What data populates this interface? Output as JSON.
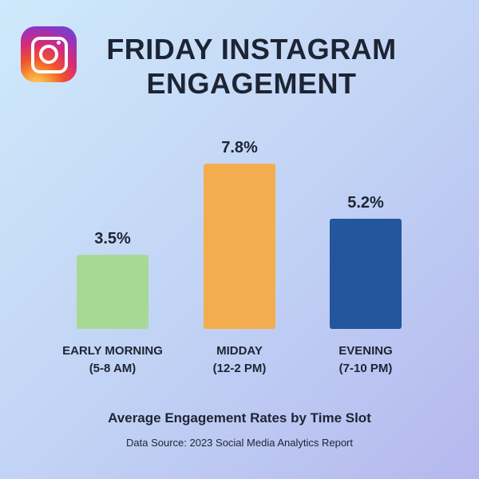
{
  "logo": {
    "icon": "instagram-logo-icon"
  },
  "title_line1": "FRIDAY INSTAGRAM",
  "title_line2": "ENGAGEMENT",
  "subtitle": "Average Engagement Rates by Time Slot",
  "source": "Data Source: 2023 Social Media Analytics Report",
  "colors": {
    "early_morning": "#a7d995",
    "midday": "#f3ad4e",
    "evening": "#23569c"
  },
  "chart_data": {
    "type": "bar",
    "title": "FRIDAY INSTAGRAM ENGAGEMENT",
    "subtitle": "Average Engagement Rates by Time Slot",
    "categories": [
      [
        "EARLY MORNING",
        "(5-8 AM)"
      ],
      [
        "MIDDAY",
        "(12-2 PM)"
      ],
      [
        "EVENING",
        "(7-10 PM)"
      ]
    ],
    "values": [
      3.5,
      7.8,
      5.2
    ],
    "value_labels": [
      "3.5%",
      "7.8%",
      "5.2%"
    ],
    "colors": [
      "#a7d995",
      "#f3ad4e",
      "#23569c"
    ],
    "unit": "%",
    "xlabel": "",
    "ylabel": "",
    "ylim": [
      0,
      7.8
    ],
    "grid": false,
    "legend": "none"
  }
}
